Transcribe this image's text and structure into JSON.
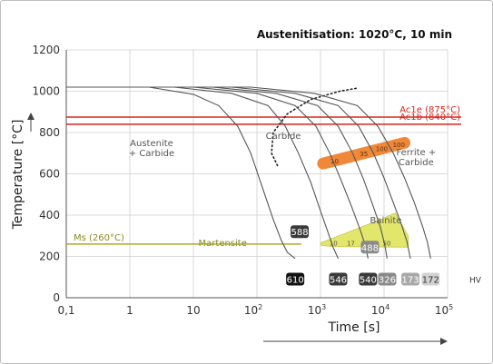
{
  "chart_data": {
    "type": "line",
    "title": "Austenitisation: 1020°C, 10 min",
    "xlabel": "Time [s]",
    "ylabel": "Temperature [°C]",
    "x_scale": "log",
    "xlim": [
      0.1,
      100000
    ],
    "ylim": [
      0,
      1200
    ],
    "x_ticks": [
      {
        "value": 0.1,
        "label": "0,1"
      },
      {
        "value": 1,
        "label": "1"
      },
      {
        "value": 10,
        "label": "10"
      },
      {
        "value": 100,
        "label": "10",
        "exp": "2"
      },
      {
        "value": 1000,
        "label": "10",
        "exp": "3"
      },
      {
        "value": 10000,
        "label": "10",
        "exp": "4"
      },
      {
        "value": 100000,
        "label": "10",
        "exp": "5"
      }
    ],
    "y_ticks": [
      0,
      200,
      400,
      600,
      800,
      1000,
      1200
    ],
    "grid": true,
    "reference_lines": [
      {
        "label": "Ac1e (875°C)",
        "value": 875,
        "color": "#d9261c"
      },
      {
        "label": "Ac1b (840°C)",
        "value": 840,
        "color": "#d9261c"
      },
      {
        "label": "Ms (260°C)",
        "value": 260,
        "color": "#a9ab26",
        "xend": 500
      }
    ],
    "regions": [
      {
        "label": "Austenite",
        "label2": "+ Carbide",
        "x": 2.2,
        "y": 735
      },
      {
        "label": "Carbide",
        "x": 260,
        "y": 770
      },
      {
        "label": "Ferrite +",
        "label2": "Carbide",
        "x": 32000,
        "y": 690
      },
      {
        "label": "Martensite",
        "x": 12,
        "y": 250,
        "color": "#8a8a20"
      },
      {
        "label": "Bainite",
        "x": 6000,
        "y": 360
      }
    ],
    "cooling_curves": [
      {
        "hv": "610",
        "points": [
          [
            0.1,
            1020
          ],
          [
            2,
            1020
          ],
          [
            10,
            985
          ],
          [
            25,
            930
          ],
          [
            50,
            830
          ],
          [
            80,
            700
          ],
          [
            120,
            540
          ],
          [
            180,
            380
          ],
          [
            240,
            280
          ],
          [
            300,
            220
          ],
          [
            400,
            190
          ]
        ]
      },
      {
        "hv": "546",
        "points": [
          [
            0.1,
            1020
          ],
          [
            5,
            1020
          ],
          [
            40,
            990
          ],
          [
            150,
            930
          ],
          [
            280,
            830
          ],
          [
            450,
            700
          ],
          [
            700,
            560
          ],
          [
            1000,
            420
          ],
          [
            1300,
            320
          ],
          [
            1600,
            240
          ],
          [
            1900,
            190
          ]
        ]
      },
      {
        "hv": "540",
        "points": [
          [
            0.1,
            1020
          ],
          [
            10,
            1020
          ],
          [
            100,
            990
          ],
          [
            400,
            930
          ],
          [
            850,
            830
          ],
          [
            1400,
            700
          ],
          [
            2100,
            570
          ],
          [
            3100,
            440
          ],
          [
            4200,
            330
          ],
          [
            5000,
            260
          ],
          [
            5600,
            190
          ]
        ]
      },
      {
        "hv": "326",
        "points": [
          [
            0.1,
            1020
          ],
          [
            20,
            1020
          ],
          [
            200,
            990
          ],
          [
            900,
            930
          ],
          [
            1900,
            830
          ],
          [
            3200,
            700
          ],
          [
            4800,
            570
          ],
          [
            6800,
            440
          ],
          [
            8800,
            340
          ],
          [
            10200,
            260
          ],
          [
            11200,
            190
          ]
        ]
      },
      {
        "hv": "173",
        "points": [
          [
            0.1,
            1020
          ],
          [
            40,
            1020
          ],
          [
            400,
            990
          ],
          [
            1900,
            930
          ],
          [
            4000,
            830
          ],
          [
            6800,
            700
          ],
          [
            10000,
            580
          ],
          [
            14000,
            460
          ],
          [
            19000,
            350
          ],
          [
            23000,
            270
          ],
          [
            26000,
            190
          ]
        ]
      },
      {
        "hv": "172",
        "points": [
          [
            0.1,
            1020
          ],
          [
            80,
            1020
          ],
          [
            800,
            990
          ],
          [
            3800,
            930
          ],
          [
            8000,
            830
          ],
          [
            14000,
            700
          ],
          [
            21000,
            580
          ],
          [
            30000,
            460
          ],
          [
            40000,
            350
          ],
          [
            48000,
            270
          ],
          [
            54000,
            190
          ]
        ]
      }
    ],
    "carbide_boundary": [
      [
        210,
        640
      ],
      [
        170,
        700
      ],
      [
        180,
        800
      ],
      [
        300,
        890
      ],
      [
        700,
        960
      ],
      [
        2000,
        1000
      ],
      [
        3800,
        1015
      ]
    ],
    "ferrite_band": {
      "from": [
        1100,
        650
      ],
      "to": [
        21000,
        750
      ],
      "labels": [
        "10",
        "35",
        "100",
        "100"
      ]
    },
    "bainite_region": {
      "points": [
        [
          1000,
          255
        ],
        [
          1000,
          265
        ],
        [
          9000,
          380
        ],
        [
          15000,
          410
        ],
        [
          24000,
          300
        ],
        [
          24000,
          245
        ],
        [
          1500,
          248
        ]
      ],
      "labels": [
        {
          "text": "10",
          "x": 1600,
          "y": 265
        },
        {
          "text": "17",
          "x": 3000,
          "y": 265
        },
        {
          "text": "40",
          "x": 7000,
          "y": 265
        },
        {
          "text": "50",
          "x": 11000,
          "y": 265
        }
      ]
    },
    "hv_labels": [
      {
        "text": "588",
        "x": 470,
        "y": 320,
        "style": "dark"
      },
      {
        "text": "610",
        "x": 400,
        "y": 90,
        "style": "black"
      },
      {
        "text": "546",
        "x": 1900,
        "y": 90,
        "style": "dark"
      },
      {
        "text": "488",
        "x": 6000,
        "y": 245,
        "style": "mid"
      },
      {
        "text": "540",
        "x": 5600,
        "y": 90,
        "style": "dark"
      },
      {
        "text": "326",
        "x": 11200,
        "y": 90,
        "style": "mid"
      },
      {
        "text": "173",
        "x": 26000,
        "y": 90,
        "style": "light"
      },
      {
        "text": "172",
        "x": 54000,
        "y": 90,
        "style": "lighter"
      }
    ],
    "hv_unit": "HV"
  },
  "colors": {
    "red": "#d9261c",
    "ms_line": "#a9ab26",
    "bainite_fill": "#e2e66a",
    "ferrite_band": "#f0883a",
    "curve": "#555555",
    "grid": "#cfcfcf"
  }
}
